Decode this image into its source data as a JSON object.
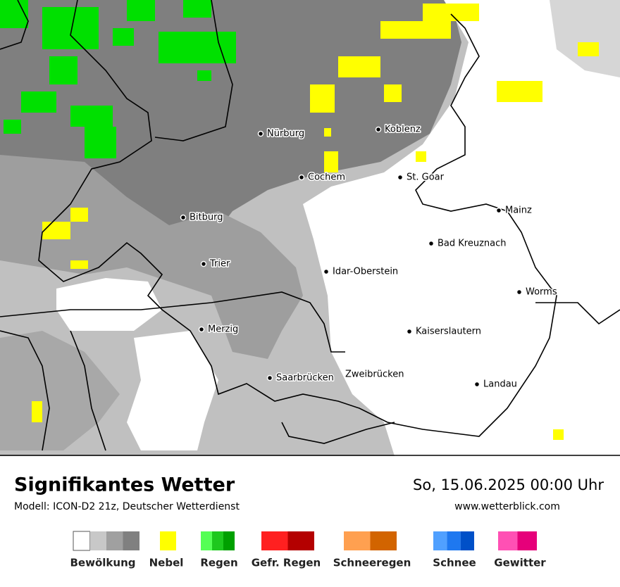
{
  "map": {
    "cities": [
      "Nürburg",
      "Koblenz",
      "Cochem",
      "St. Goar",
      "Mainz",
      "Bitburg",
      "Bad Kreuznach",
      "Trier",
      "Idar-Oberstein",
      "Worms",
      "Merzig",
      "Kaiserslautern",
      "Saarbrücken",
      "Zweibrücken",
      "Landau"
    ]
  },
  "footer": {
    "title": "Signifikantes Wetter",
    "model": "Modell: ICON-D2 21z, Deutscher Wetterdienst",
    "datetime": "So, 15.06.2025 00:00 Uhr",
    "url": "www.wetterblick.com"
  },
  "legend": [
    {
      "label": "Bewölkung",
      "colors": [
        "#ffffff",
        "#c8c8c8",
        "#a0a0a0",
        "#808080"
      ]
    },
    {
      "label": "Nebel",
      "colors": [
        "#ffff00"
      ]
    },
    {
      "label": "Regen",
      "colors": [
        "#55ff55",
        "#1ec81e",
        "#00a000"
      ]
    },
    {
      "label": "Gefr. Regen",
      "colors": [
        "#ff2020",
        "#b40000"
      ]
    },
    {
      "label": "Schneeregen",
      "colors": [
        "#ffa050",
        "#d26400"
      ]
    },
    {
      "label": "Schnee",
      "colors": [
        "#50a0ff",
        "#1e78f0",
        "#0050c8"
      ]
    },
    {
      "label": "Gewitter",
      "colors": [
        "#ff50b4",
        "#e6007a"
      ]
    }
  ]
}
